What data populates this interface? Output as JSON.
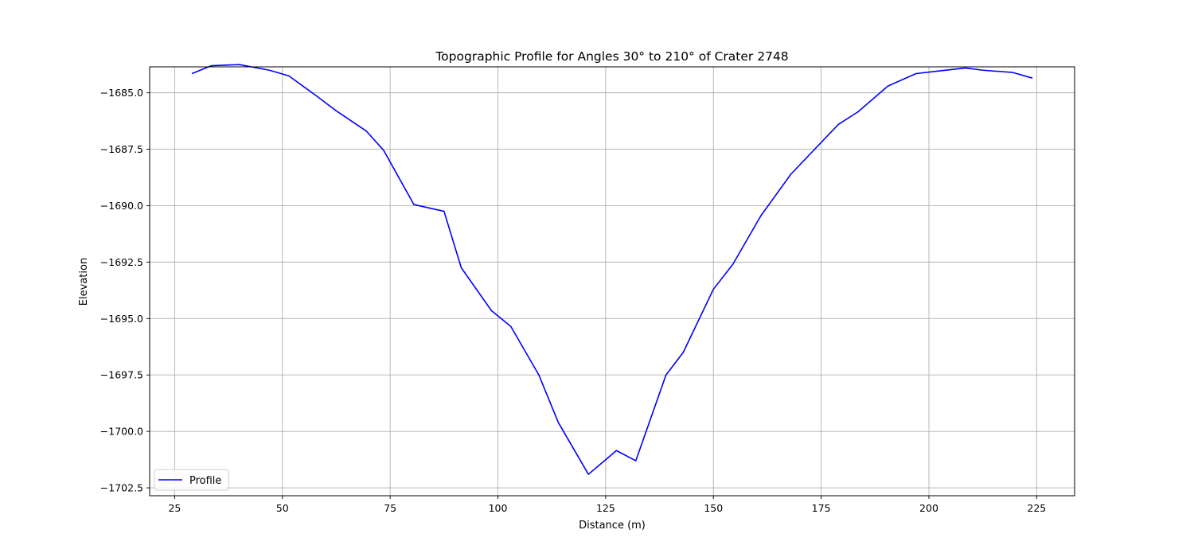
{
  "chart_data": {
    "type": "line",
    "title": "Topographic Profile for Angles 30° to 210° of Crater 2748",
    "xlabel": "Distance (m)",
    "ylabel": "Elevation",
    "xlim": [
      19.2,
      233.8
    ],
    "ylim": [
      -1702.85,
      -1683.85
    ],
    "xticks": [
      25,
      50,
      75,
      100,
      125,
      150,
      175,
      200,
      225
    ],
    "yticks": [
      -1685.0,
      -1687.5,
      -1690.0,
      -1692.5,
      -1695.0,
      -1697.5,
      -1700.0,
      -1702.5
    ],
    "grid": true,
    "legend_position": "lower-left",
    "series": [
      {
        "name": "Profile",
        "color": "#0000ff",
        "x": [
          29.0,
          33.5,
          40.0,
          47.0,
          51.5,
          58.0,
          62.5,
          69.5,
          73.5,
          80.5,
          87.5,
          91.5,
          98.5,
          103.0,
          109.5,
          114.0,
          121.0,
          127.5,
          132.0,
          139.0,
          143.0,
          150.0,
          154.5,
          161.0,
          168.0,
          172.0,
          179.0,
          183.5,
          190.5,
          197.0,
          201.5,
          208.5,
          212.5,
          219.5,
          224.0
        ],
        "y": [
          -1684.15,
          -1683.8,
          -1683.75,
          -1684.0,
          -1684.25,
          -1685.15,
          -1685.8,
          -1686.7,
          -1687.55,
          -1689.95,
          -1690.25,
          -1692.75,
          -1694.65,
          -1695.35,
          -1697.5,
          -1699.6,
          -1701.9,
          -1700.85,
          -1701.3,
          -1697.5,
          -1696.5,
          -1693.7,
          -1692.6,
          -1690.45,
          -1688.6,
          -1687.8,
          -1686.4,
          -1685.85,
          -1684.7,
          -1684.15,
          -1684.05,
          -1683.9,
          -1684.0,
          -1684.1,
          -1684.35
        ]
      }
    ]
  }
}
